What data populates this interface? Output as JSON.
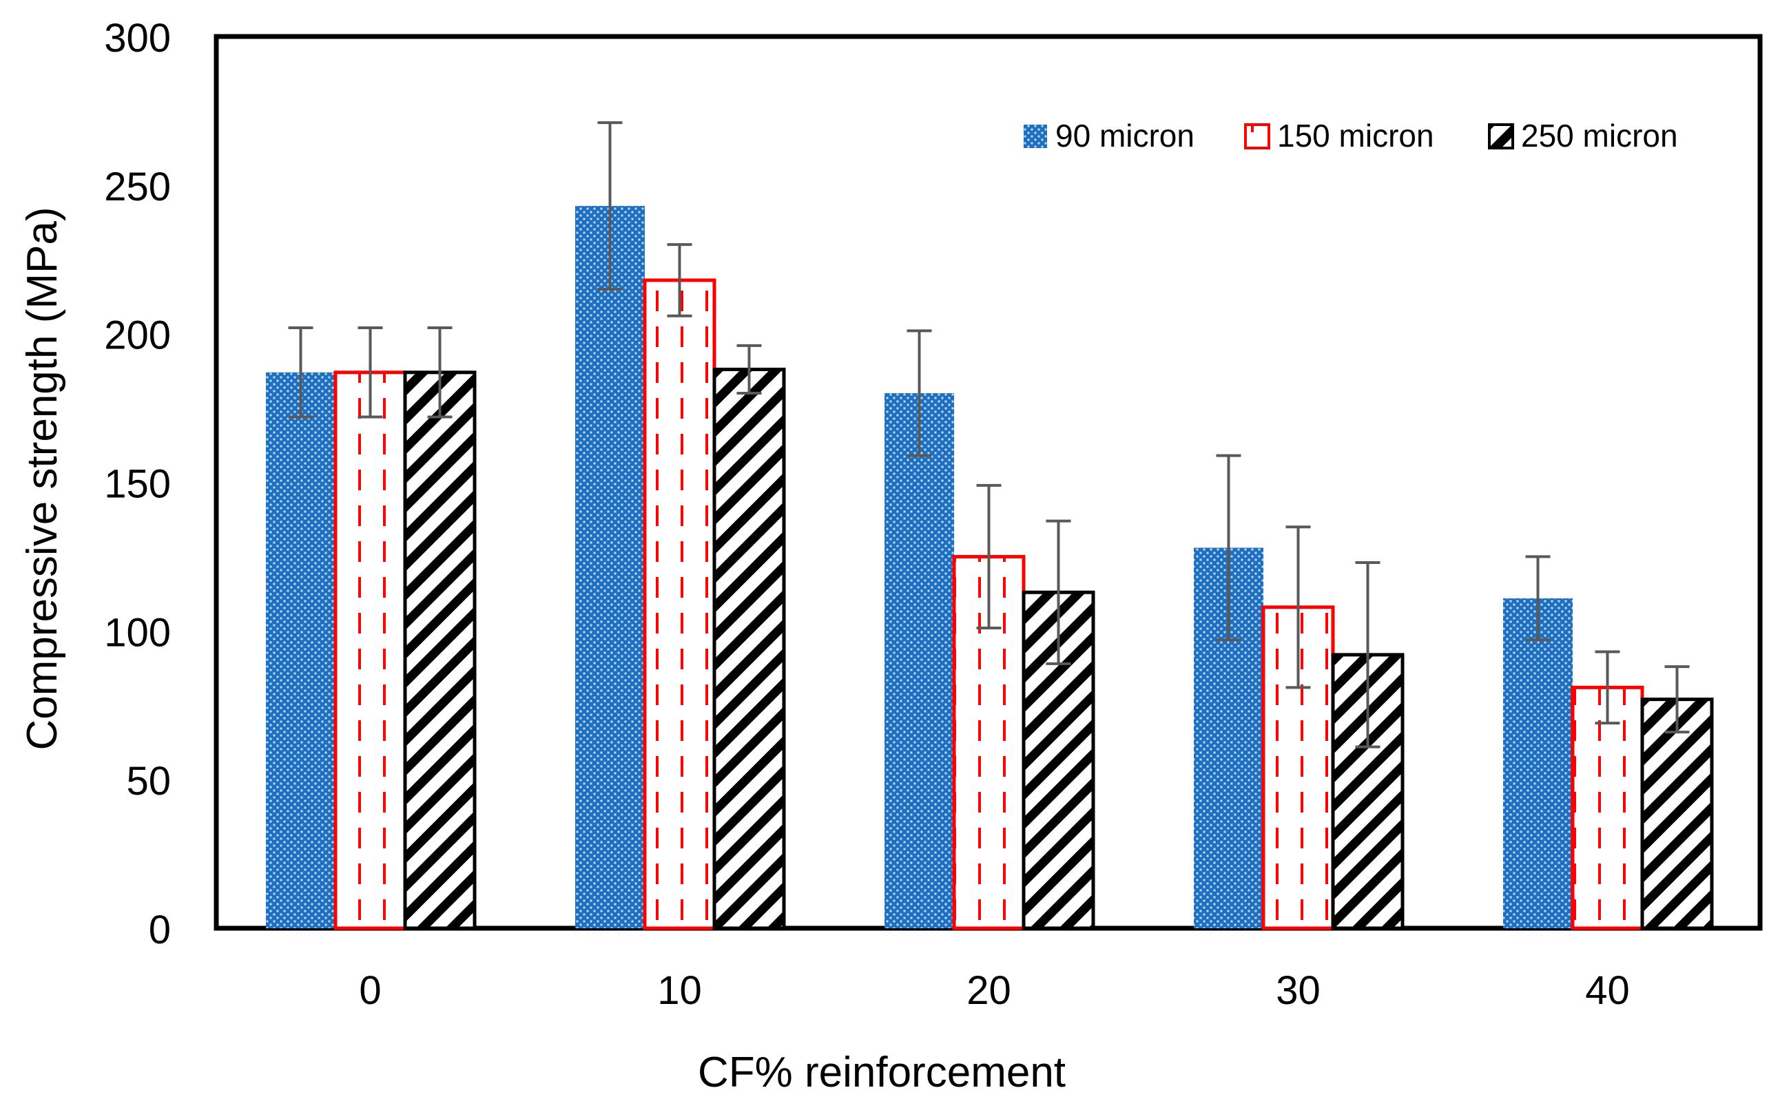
{
  "chart_data": {
    "type": "bar",
    "title": "",
    "xlabel": "CF% reinforcement",
    "ylabel": "Compressive strength (MPa)",
    "categories": [
      "0",
      "10",
      "20",
      "30",
      "40"
    ],
    "ylim": [
      0,
      300
    ],
    "yticks": [
      0,
      50,
      100,
      150,
      200,
      250,
      300
    ],
    "ytick_labels": [
      "0",
      "50",
      "100",
      "150",
      "200",
      "250",
      "300"
    ],
    "grid": false,
    "legend_position": "top-right",
    "error_bars": true,
    "series": [
      {
        "name": "90 micron",
        "values": [
          187,
          243,
          180,
          128,
          111
        ],
        "errors": [
          15,
          28,
          21,
          31,
          14
        ],
        "color": "#1f6fc0",
        "pattern": "dotted-fill"
      },
      {
        "name": "150 micron",
        "values": [
          187,
          218,
          125,
          108,
          81
        ],
        "errors": [
          15,
          12,
          24,
          27,
          12
        ],
        "color": "#ff0000",
        "pattern": "dashed-vertical"
      },
      {
        "name": "250 micron",
        "values": [
          187,
          188,
          113,
          92,
          77
        ],
        "errors": [
          15,
          8,
          24,
          31,
          11
        ],
        "color": "#000000",
        "pattern": "diagonal-stripes"
      }
    ]
  }
}
